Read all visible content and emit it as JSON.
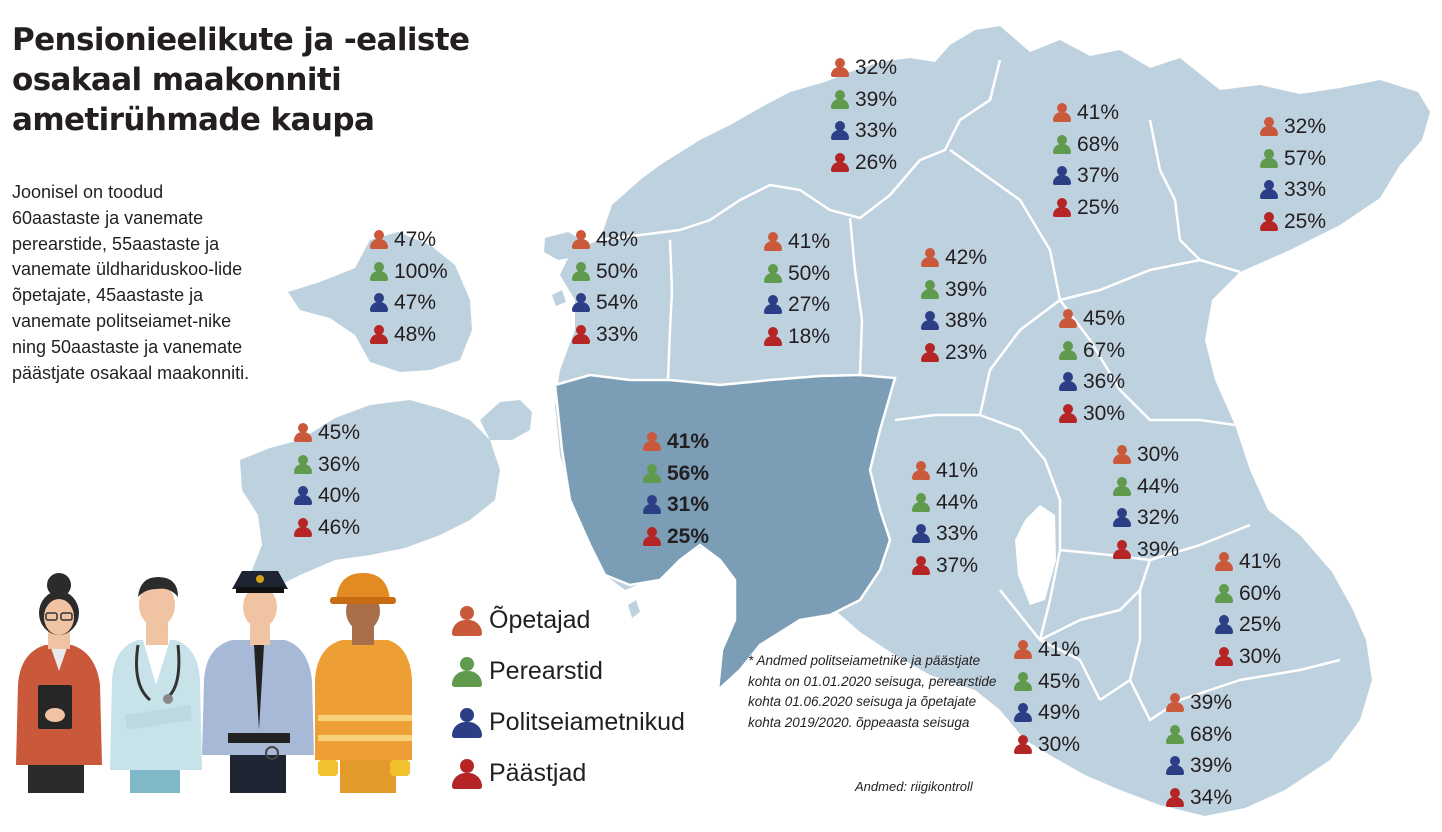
{
  "title": "Pensionieelikute ja -ealiste osakaal maakonniti ametirühmade kaupa",
  "intro": "Joonisel on toodud 60aastaste ja vanemate perearstide, 55aastaste ja vanemate üldhariduskoo-lide õpetajate, 45aastaste ja vanemate politseiamet-nike ning 50aastaste ja vanemate päästjate osakaal maakonniti.",
  "colors": {
    "map_fill": "#bed1df",
    "map_highlight": "#7b9db6",
    "border": "#ffffff",
    "opetajad": "#c9593a",
    "perearstid": "#5f9a4d",
    "politseiametnikud": "#2c3e86",
    "paastjad": "#b52525"
  },
  "legend": [
    {
      "key": "opetajad",
      "label": "Õpetajad"
    },
    {
      "key": "perearstid",
      "label": "Perearstid"
    },
    {
      "key": "politseiametnikud",
      "label": "Politseiametnikud"
    },
    {
      "key": "paastjad",
      "label": "Päästjad"
    }
  ],
  "regions": [
    {
      "id": "harjumaa",
      "values": [
        "32%",
        "39%",
        "33%",
        "26%"
      ]
    },
    {
      "id": "laane-virumaa",
      "values": [
        "41%",
        "68%",
        "37%",
        "25%"
      ]
    },
    {
      "id": "ida-virumaa",
      "values": [
        "32%",
        "57%",
        "33%",
        "25%"
      ]
    },
    {
      "id": "hiiumaa",
      "values": [
        "47%",
        "100%",
        "47%",
        "48%"
      ]
    },
    {
      "id": "laanemaa",
      "values": [
        "48%",
        "50%",
        "54%",
        "33%"
      ]
    },
    {
      "id": "raplamaa",
      "values": [
        "41%",
        "50%",
        "27%",
        "18%"
      ]
    },
    {
      "id": "jarvamaa",
      "values": [
        "42%",
        "39%",
        "38%",
        "23%"
      ]
    },
    {
      "id": "jogevamaa",
      "values": [
        "45%",
        "67%",
        "36%",
        "30%"
      ]
    },
    {
      "id": "saaremaa",
      "values": [
        "45%",
        "36%",
        "40%",
        "46%"
      ]
    },
    {
      "id": "parnumaa",
      "highlight": true,
      "values": [
        "41%",
        "56%",
        "31%",
        "25%"
      ]
    },
    {
      "id": "viljandimaa",
      "values": [
        "41%",
        "44%",
        "33%",
        "37%"
      ]
    },
    {
      "id": "tartumaa",
      "values": [
        "30%",
        "44%",
        "32%",
        "39%"
      ]
    },
    {
      "id": "polvamaa",
      "values": [
        "41%",
        "60%",
        "25%",
        "30%"
      ]
    },
    {
      "id": "valgamaa",
      "values": [
        "41%",
        "45%",
        "49%",
        "30%"
      ]
    },
    {
      "id": "vorumaa",
      "values": [
        "39%",
        "68%",
        "39%",
        "34%"
      ]
    }
  ],
  "footnote": "* Andmed politseiametnike ja päästjate kohta on 01.01.2020 seisuga, perearstide kohta 01.06.2020 seisuga ja õpetajate kohta 2019/2020. õppeaasta seisuga",
  "source": "Andmed: riigikontroll"
}
